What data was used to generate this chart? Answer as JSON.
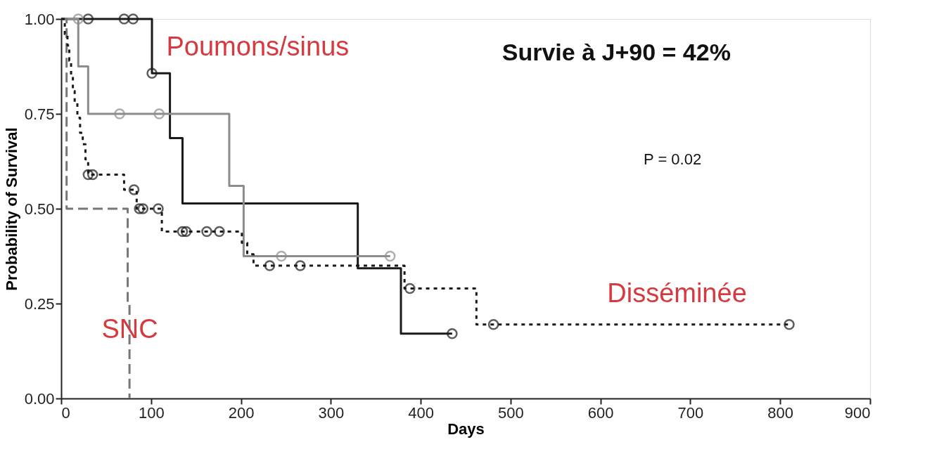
{
  "chart_data": {
    "type": "step",
    "xlabel": "Days",
    "ylabel": "Probability of Survival",
    "xlim": [
      0,
      900
    ],
    "xticks": [
      0,
      100,
      200,
      300,
      400,
      500,
      600,
      700,
      800,
      900
    ],
    "ylim": [
      0,
      1
    ],
    "yticks": [
      {
        "value": 0,
        "label": "0.00"
      },
      {
        "value": 0.25,
        "label": "0.25"
      },
      {
        "value": 0.5,
        "label": "0.50"
      },
      {
        "value": 0.75,
        "label": "0.75"
      },
      {
        "value": 1,
        "label": "1.00"
      }
    ],
    "grid": false,
    "series": [
      {
        "color": "#1a1a1a",
        "line_style": "solid",
        "x": [
          0,
          101,
          121,
          135,
          330,
          378,
          435
        ],
        "values": [
          1,
          0.857,
          0.686,
          0.514,
          0.343,
          0.171,
          0.171
        ]
      },
      {
        "color": "#8c8c8c",
        "line_style": "solid",
        "x": [
          0,
          19,
          30,
          187,
          203,
          366
        ],
        "values": [
          1,
          0.875,
          0.75,
          0.56,
          0.375,
          0.375
        ]
      },
      {
        "color": "#777777",
        "line_style": "dashed",
        "x": [
          0,
          6,
          74,
          76
        ],
        "values": [
          1,
          0.5,
          0.25,
          0
        ]
      },
      {
        "color": "#1a1a1a",
        "line_style": "dotted",
        "x": [
          0,
          4,
          7,
          9,
          11,
          13,
          15,
          18,
          21,
          24,
          27,
          30,
          70,
          84,
          112,
          201,
          207,
          214,
          382,
          462,
          810
        ],
        "values": [
          1,
          0.96,
          0.93,
          0.89,
          0.85,
          0.81,
          0.78,
          0.74,
          0.7,
          0.67,
          0.63,
          0.59,
          0.55,
          0.5,
          0.44,
          0.41,
          0.38,
          0.35,
          0.29,
          0.195,
          0.195
        ]
      },
      {
        "type": "scatter",
        "marker": "circle",
        "color": "#1a1a1a",
        "x": [
          30,
          70,
          80,
          101,
          435
        ],
        "values": [
          1,
          1,
          1,
          0.857,
          0.171
        ]
      },
      {
        "type": "scatter",
        "marker": "circle",
        "color": "#8c8c8c",
        "x": [
          19,
          65,
          109,
          245,
          366
        ],
        "values": [
          1,
          0.75,
          0.75,
          0.375,
          0.375
        ]
      },
      {
        "type": "scatter",
        "marker": "circle",
        "color": "#1a1a1a",
        "x": [
          30,
          35,
          81,
          87,
          91,
          108,
          135,
          139,
          162,
          176,
          232,
          266,
          388,
          481,
          810
        ],
        "values": [
          0.59,
          0.59,
          0.55,
          0.5,
          0.5,
          0.5,
          0.44,
          0.44,
          0.44,
          0.44,
          0.35,
          0.35,
          0.29,
          0.195,
          0.195
        ]
      }
    ],
    "annotations": [
      "Poumons/sinus",
      "SNC",
      "Disséminée",
      "Survie à J+90 = 42%",
      "P = 0.02"
    ]
  }
}
